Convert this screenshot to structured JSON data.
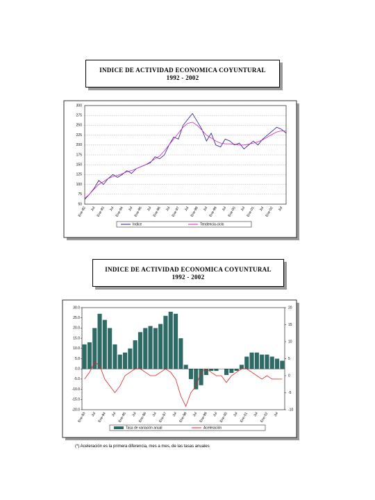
{
  "titles": [
    {
      "title": "INDICE DE ACTIVIDAD ECONOMICA COYUNTURAL",
      "subtitle": "1992 - 2002"
    },
    {
      "title": "INDICE DE ACTIVIDAD ECONOMICA COYUNTURAL",
      "subtitle": "1992 - 2002"
    }
  ],
  "chart_data": [
    {
      "type": "line",
      "categories": [
        "Ene-92",
        null,
        "Jul",
        null,
        "Ene-93",
        null,
        "Jul",
        null,
        "Ene-94",
        null,
        "Jul",
        null,
        "Ene-95",
        null,
        "Jul",
        null,
        "Ene-96",
        null,
        "Jul",
        null,
        "Ene-97",
        null,
        "Jul",
        null,
        "Ene-98",
        null,
        "Jul",
        null,
        "Ene-99",
        null,
        "Jul",
        null,
        "Ene-00",
        null,
        "Jul",
        null,
        "Ene-01",
        null,
        "Jul",
        null,
        "Ene-02",
        null,
        "Jul",
        null
      ],
      "series": [
        {
          "name": "Indice",
          "color": "#1a1a80",
          "values": [
            62,
            75,
            90,
            110,
            100,
            115,
            125,
            118,
            125,
            135,
            128,
            140,
            145,
            150,
            155,
            170,
            165,
            175,
            200,
            220,
            215,
            250,
            265,
            280,
            260,
            240,
            210,
            230,
            200,
            195,
            215,
            210,
            200,
            205,
            190,
            200,
            210,
            200,
            215,
            225,
            235,
            245,
            240,
            230
          ]
        },
        {
          "name": "Tendencia-ciclo",
          "color": "#d020d0",
          "values": [
            65,
            75,
            88,
            100,
            107,
            115,
            120,
            123,
            127,
            132,
            135,
            140,
            145,
            150,
            157,
            165,
            172,
            185,
            200,
            215,
            230,
            245,
            255,
            258,
            250,
            238,
            225,
            218,
            210,
            205,
            203,
            203,
            202,
            200,
            200,
            202,
            205,
            208,
            213,
            220,
            227,
            233,
            236,
            235
          ]
        }
      ],
      "ylim": [
        50,
        300
      ],
      "yticks": [
        50,
        75,
        100,
        125,
        150,
        175,
        200,
        225,
        250,
        275,
        300
      ],
      "grid": true
    },
    {
      "type": "combo",
      "categories": [
        "Ene-93",
        null,
        "Jul",
        null,
        "Ene-94",
        null,
        "Jul",
        null,
        "Ene-95",
        null,
        "Jul",
        null,
        "Ene-96",
        null,
        "Jul",
        null,
        "Ene-97",
        null,
        "Jul",
        null,
        "Ene-98",
        null,
        "Jul",
        null,
        "Ene-99",
        null,
        "Jul",
        null,
        "Ene-00",
        null,
        "Jul",
        null,
        "Ene-01",
        null,
        "Jul",
        null,
        "Ene-02",
        null,
        "Jul",
        null
      ],
      "series": [
        {
          "name": "Tasa de variación anual",
          "color": "#2e6b66",
          "kind": "bar",
          "values": [
            12,
            13,
            20,
            27,
            24,
            20,
            12,
            7,
            8,
            10,
            14,
            18,
            20,
            21,
            20,
            22,
            26,
            28,
            27,
            15,
            2,
            -5,
            -10,
            -8,
            -3,
            -1,
            -1,
            0,
            -3,
            -2,
            -1,
            2,
            6,
            8,
            8,
            7,
            7,
            6,
            5,
            4
          ]
        },
        {
          "name": "Aceleración",
          "color": "#e02020",
          "kind": "line",
          "axis": "y2",
          "values": [
            -1,
            1,
            4,
            3,
            -1,
            -3,
            -5,
            -3,
            0,
            1,
            2,
            2,
            1,
            0,
            0,
            1,
            2,
            1,
            -1,
            -6,
            -9,
            -5,
            -3,
            1,
            2,
            1,
            0,
            0,
            -2,
            0,
            1,
            2,
            2,
            1,
            0,
            -1,
            0,
            -1,
            -1,
            -1
          ]
        }
      ],
      "ylim": [
        -20,
        30
      ],
      "yticks": [
        {
          "value": -20,
          "label": "-20.0"
        },
        {
          "value": -15,
          "label": "-15.0"
        },
        {
          "value": -10,
          "label": "-10.0"
        },
        {
          "value": -5,
          "label": "-5.0"
        },
        {
          "value": 0,
          "label": "0.0"
        },
        {
          "value": 5,
          "label": "5.0"
        },
        {
          "value": 10,
          "label": "10.0"
        },
        {
          "value": 15,
          "label": "15.0"
        },
        {
          "value": 20,
          "label": "20.0"
        },
        {
          "value": 25,
          "label": "25.0"
        },
        {
          "value": 30,
          "label": "30.0"
        }
      ],
      "y2lim": [
        -10,
        20
      ],
      "y2ticks": [
        -10,
        -5,
        0,
        5,
        10,
        15,
        20
      ],
      "grid": false
    }
  ],
  "footnote": "(*) Aceleración es la primera diferencia, mes a mes, de las tasas anuales"
}
